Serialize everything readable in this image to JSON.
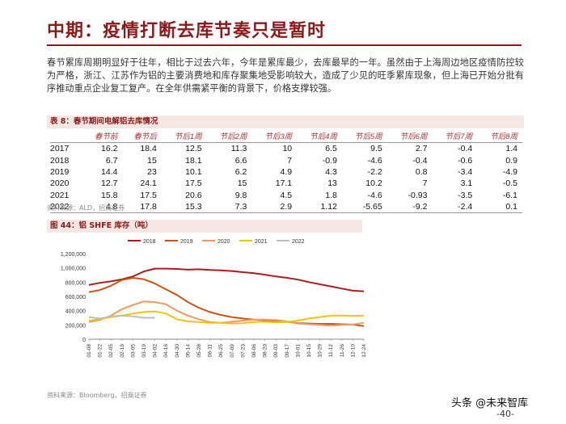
{
  "header": {
    "title": "中期：疫情打断去库节奏只是暂时"
  },
  "paragraph": "春节累库周期明显好于往年，相比于过去六年，今年是累库最少，去库最早的一年。虽然由于上海周边地区疫情防控较为严格，浙江、江苏作为铝的主要消费地和库存聚集地受影响较大，造成了少见的旺季累库现象，但上海已开始分批有序推动重点企业复工复产。在全年供需紧平衡的背景下，价格支撑较强。",
  "table": {
    "caption": "表 8：春节期间电解铝去库情况",
    "headers": [
      "",
      "春节前",
      "春节后",
      "节后1周",
      "节后2周",
      "节后3周",
      "节后4周",
      "节后5周",
      "节后6周",
      "节后7周",
      "节后8周"
    ],
    "rows": [
      [
        "2017",
        "16.2",
        "18.4",
        "12.5",
        "11.3",
        "10",
        "6.5",
        "9.5",
        "2.7",
        "-0.4",
        "1.4"
      ],
      [
        "2018",
        "6.7",
        "15",
        "18.1",
        "6.6",
        "7",
        "-0.9",
        "-4.6",
        "-0.4",
        "-0.6",
        "0.9"
      ],
      [
        "2019",
        "14.4",
        "23",
        "10.1",
        "6.2",
        "4.9",
        "4.3",
        "-2.2",
        "0.8",
        "-3.4",
        "-4.9"
      ],
      [
        "2020",
        "12.7",
        "24.1",
        "17.5",
        "15",
        "17.1",
        "13",
        "10.2",
        "7",
        "3.1",
        "-0.5"
      ],
      [
        "2021",
        "15.8",
        "17.5",
        "20.6",
        "9.8",
        "4.5",
        "1.8",
        "-4.6",
        "-0.93",
        "-3.5",
        "-6.1"
      ],
      [
        "2022",
        "4.8",
        "17.8",
        "15.3",
        "7.3",
        "2.9",
        "1.12",
        "-5.65",
        "-9.2",
        "-2.4",
        "0.1"
      ]
    ],
    "source": "资料来源：ALD，招商证券"
  },
  "chart_caption": "图 44：铝 SHFE 库存（吨）",
  "chart_source": "资料来源：Bloomberg，招商证券",
  "page_number": "-40-",
  "watermark": "头条 @未来智库",
  "chart_data": {
    "type": "line",
    "title": "",
    "xlabel": "",
    "ylabel": "",
    "ylim": [
      0,
      1200000
    ],
    "yticks": [
      0,
      200000,
      400000,
      600000,
      800000,
      1000000,
      1200000
    ],
    "ytick_labels": [
      "0",
      "200,000",
      "400,000",
      "600,000",
      "800,000",
      "1,000,000",
      "1,200,000"
    ],
    "categories": [
      "01-08",
      "01-22",
      "02-05",
      "02-19",
      "03-05",
      "03-19",
      "04-02",
      "04-16",
      "04-30",
      "05-14",
      "05-28",
      "06-11",
      "06-25",
      "07-09",
      "07-23",
      "08-06",
      "08-20",
      "09-03",
      "09-17",
      "10-01",
      "10-15",
      "10-29",
      "11-12",
      "11-26",
      "12-10",
      "12-24"
    ],
    "legend_position": "top",
    "grid": false,
    "series": [
      {
        "name": "2018",
        "color": "#a81e1e",
        "values": [
          760000,
          790000,
          810000,
          840000,
          880000,
          950000,
          990000,
          990000,
          985000,
          975000,
          980000,
          970000,
          965000,
          955000,
          940000,
          925000,
          905000,
          880000,
          860000,
          835000,
          800000,
          770000,
          740000,
          710000,
          680000,
          670000
        ]
      },
      {
        "name": "2019",
        "color": "#c9531a",
        "values": [
          660000,
          690000,
          750000,
          830000,
          860000,
          840000,
          780000,
          700000,
          620000,
          520000,
          440000,
          380000,
          340000,
          310000,
          290000,
          275000,
          265000,
          260000,
          245000,
          225000,
          220000,
          215000,
          215000,
          210000,
          205000,
          185000
        ]
      },
      {
        "name": "2020",
        "color": "#ec9a66",
        "values": [
          240000,
          270000,
          330000,
          420000,
          480000,
          530000,
          520000,
          490000,
          400000,
          330000,
          280000,
          240000,
          230000,
          245000,
          260000,
          275000,
          275000,
          270000,
          250000,
          220000,
          210000,
          200000,
          190000,
          200000,
          205000,
          230000
        ]
      },
      {
        "name": "2021",
        "color": "#f1c40f",
        "values": [
          260000,
          280000,
          310000,
          330000,
          360000,
          380000,
          390000,
          360000,
          280000,
          250000,
          240000,
          230000,
          230000,
          220000,
          225000,
          240000,
          245000,
          235000,
          240000,
          260000,
          290000,
          310000,
          330000,
          330000,
          325000,
          330000
        ]
      },
      {
        "name": "2022",
        "color": "#bdbdbd",
        "values": [
          310000,
          290000,
          320000,
          330000,
          320000,
          300000,
          300000,
          null,
          null,
          null,
          null,
          null,
          null,
          null,
          null,
          null,
          null,
          null,
          null,
          null,
          null,
          null,
          null,
          null,
          null,
          null
        ]
      }
    ]
  }
}
